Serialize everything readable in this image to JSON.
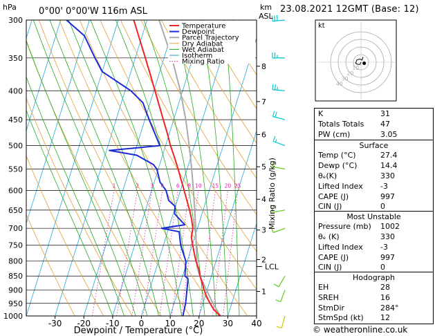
{
  "header": {
    "location": "0°00' 0°00'W 116m ASL",
    "datetime": "23.08.2021 12GMT (Base: 12)",
    "hpa_unit": "hPa",
    "km_unit": "km",
    "asl_unit": "ASL"
  },
  "chart_data": {
    "type": "line",
    "xlabel": "Dewpoint / Temperature (°C)",
    "ylabel": "Mixing Ratio (g/kg)",
    "xlim": [
      -40,
      40
    ],
    "pressure_range_hpa": [
      1000,
      300
    ],
    "x_ticks": [
      -30,
      -20,
      -10,
      0,
      10,
      20,
      30,
      40
    ],
    "pressure_ticks": [
      300,
      350,
      400,
      450,
      500,
      550,
      600,
      650,
      700,
      750,
      800,
      850,
      900,
      950,
      1000
    ],
    "altitude_ticks": [
      {
        "km": "1",
        "p": 905
      },
      {
        "km": "2",
        "p": 795
      },
      {
        "km": "3",
        "p": 705
      },
      {
        "km": "4",
        "p": 622
      },
      {
        "km": "5",
        "p": 545
      },
      {
        "km": "6",
        "p": 478
      },
      {
        "km": "7",
        "p": 418
      },
      {
        "km": "8",
        "p": 362
      }
    ],
    "lcl": {
      "label": "LCL",
      "p": 818
    },
    "mixing_ratio_labels": [
      "1",
      "2",
      "3",
      "4",
      "6",
      "8",
      "10",
      "15",
      "20",
      "25"
    ],
    "mixing_ratio_values": [
      1,
      2,
      3,
      4,
      6,
      8,
      10,
      15,
      20,
      25
    ],
    "legend": [
      {
        "name": "Temperature",
        "color": "#ee2222"
      },
      {
        "name": "Dewpoint",
        "color": "#1a2bd6"
      },
      {
        "name": "Parcel Trajectory",
        "color": "#aaaaaa"
      },
      {
        "name": "Dry Adiabat",
        "color": "#e0a030"
      },
      {
        "name": "Wet Adiabat",
        "color": "#22aa22"
      },
      {
        "name": "Isotherm",
        "color": "#22aadd"
      },
      {
        "name": "Mixing Ratio",
        "color": "#dd22aa"
      }
    ],
    "legend_position": "top-right",
    "series": [
      {
        "name": "Temperature",
        "points": [
          [
            1000,
            27.4
          ],
          [
            975,
            24.5
          ],
          [
            950,
            22.5
          ],
          [
            925,
            20.6
          ],
          [
            900,
            19.0
          ],
          [
            875,
            17.6
          ],
          [
            850,
            16.0
          ],
          [
            825,
            14.8
          ],
          [
            800,
            13.0
          ],
          [
            775,
            11.6
          ],
          [
            750,
            10.2
          ],
          [
            725,
            8.8
          ],
          [
            700,
            8.4
          ],
          [
            675,
            7.0
          ],
          [
            650,
            5.3
          ],
          [
            625,
            3.3
          ],
          [
            600,
            1.3
          ],
          [
            575,
            -0.9
          ],
          [
            550,
            -3.1
          ],
          [
            525,
            -5.6
          ],
          [
            500,
            -8.3
          ],
          [
            475,
            -10.8
          ],
          [
            450,
            -13.6
          ],
          [
            425,
            -16.5
          ],
          [
            400,
            -19.6
          ],
          [
            375,
            -22.9
          ],
          [
            350,
            -26.5
          ],
          [
            325,
            -30.4
          ],
          [
            300,
            -34.6
          ]
        ]
      },
      {
        "name": "Dewpoint",
        "points": [
          [
            1000,
            14.4
          ],
          [
            950,
            14.0
          ],
          [
            900,
            13.0
          ],
          [
            860,
            12.2
          ],
          [
            850,
            10.8
          ],
          [
            800,
            9.5
          ],
          [
            750,
            6.0
          ],
          [
            710,
            4.0
          ],
          [
            700,
            -2.5
          ],
          [
            690,
            5.2
          ],
          [
            660,
            0.5
          ],
          [
            640,
            -0.2
          ],
          [
            625,
            -3.0
          ],
          [
            600,
            -5.0
          ],
          [
            580,
            -8.0
          ],
          [
            550,
            -10.5
          ],
          [
            540,
            -12.2
          ],
          [
            520,
            -19.0
          ],
          [
            510,
            -29.0
          ],
          [
            500,
            -12.0
          ],
          [
            450,
            -18.5
          ],
          [
            420,
            -22.5
          ],
          [
            400,
            -28.0
          ],
          [
            370,
            -40.0
          ],
          [
            350,
            -44.0
          ],
          [
            320,
            -50.0
          ],
          [
            300,
            -58.0
          ]
        ]
      },
      {
        "name": "Parcel Trajectory",
        "points": [
          [
            1000,
            27.4
          ],
          [
            950,
            23.5
          ],
          [
            900,
            19.8
          ],
          [
            850,
            16.0
          ],
          [
            818,
            13.9
          ],
          [
            800,
            13.4
          ],
          [
            750,
            11.4
          ],
          [
            700,
            9.4
          ],
          [
            650,
            7.1
          ],
          [
            600,
            4.5
          ],
          [
            550,
            1.6
          ],
          [
            500,
            -1.8
          ],
          [
            450,
            -5.8
          ],
          [
            400,
            -10.8
          ],
          [
            350,
            -17.3
          ],
          [
            300,
            -25.8
          ]
        ]
      }
    ],
    "wind_barbs": [
      {
        "p": 1000,
        "dir": 195,
        "speed_kt": 12
      },
      {
        "p": 900,
        "dir": 200,
        "speed_kt": 10
      },
      {
        "p": 850,
        "dir": 210,
        "speed_kt": 10
      },
      {
        "p": 700,
        "dir": 250,
        "speed_kt": 10
      },
      {
        "p": 650,
        "dir": 260,
        "speed_kt": 10
      },
      {
        "p": 550,
        "dir": 280,
        "speed_kt": 10
      },
      {
        "p": 500,
        "dir": 290,
        "speed_kt": 15
      },
      {
        "p": 450,
        "dir": 285,
        "speed_kt": 20
      },
      {
        "p": 400,
        "dir": 275,
        "speed_kt": 25
      },
      {
        "p": 350,
        "dir": 270,
        "speed_kt": 25
      },
      {
        "p": 300,
        "dir": 265,
        "speed_kt": 30
      }
    ],
    "hodograph": {
      "unit_label": "kt",
      "ring_labels": [
        "10",
        "20",
        "30",
        "40"
      ],
      "trace_kt": [
        [
          0,
          0
        ],
        [
          -1,
          -2
        ],
        [
          -3,
          -2
        ],
        [
          -5,
          -1
        ],
        [
          -4,
          2
        ],
        [
          -1,
          3
        ],
        [
          1,
          2
        ],
        [
          2,
          5
        ]
      ],
      "storm_motion_kt": [
        3,
        -1
      ]
    }
  },
  "indices": {
    "top": [
      {
        "label": "K",
        "value": "31"
      },
      {
        "label": "Totals Totals",
        "value": "47"
      },
      {
        "label": "PW (cm)",
        "value": "3.05"
      }
    ],
    "surface": {
      "title": "Surface",
      "rows": [
        {
          "label": "Temp (°C)",
          "value": "27.4"
        },
        {
          "label": "Dewp (°C)",
          "value": "14.4"
        },
        {
          "label": "θₑ(K)",
          "value": "330"
        },
        {
          "label": "Lifted Index",
          "value": "-3"
        },
        {
          "label": "CAPE (J)",
          "value": "997"
        },
        {
          "label": "CIN (J)",
          "value": "0"
        }
      ]
    },
    "unstable": {
      "title": "Most Unstable",
      "rows": [
        {
          "label": "Pressure (mb)",
          "value": "1002"
        },
        {
          "label": "θₑ (K)",
          "value": "330"
        },
        {
          "label": "Lifted Index",
          "value": "-3"
        },
        {
          "label": "CAPE (J)",
          "value": "997"
        },
        {
          "label": "CIN (J)",
          "value": "0"
        }
      ]
    },
    "hodograph": {
      "title": "Hodograph",
      "rows": [
        {
          "label": "EH",
          "value": "28"
        },
        {
          "label": "SREH",
          "value": "16"
        },
        {
          "label": "StmDir",
          "value": "284°"
        },
        {
          "label": "StmSpd (kt)",
          "value": "12"
        }
      ]
    }
  },
  "footer": "© weatheronline.co.uk"
}
